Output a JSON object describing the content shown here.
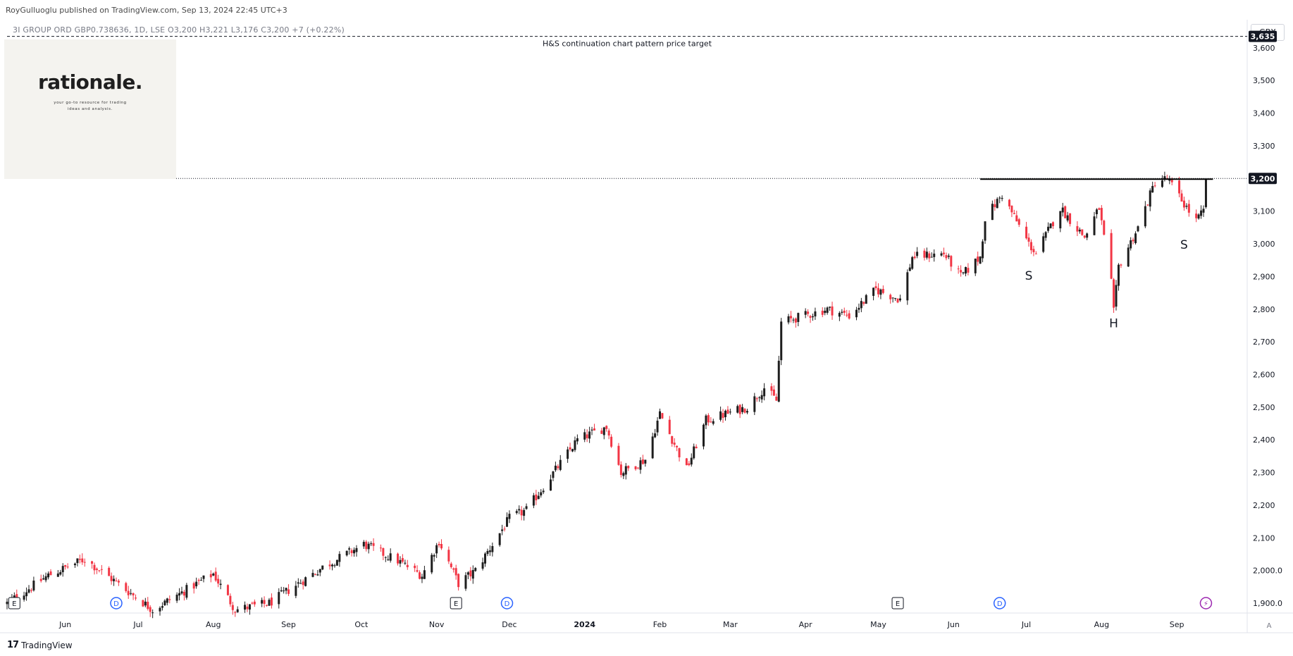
{
  "header": {
    "published": "RoyGulluoglu published on TradingView.com, Sep 13, 2024 22:45 UTC+3",
    "symbol_line": "3I GROUP ORD GBP0.738636, 1D, LSE  O3,200  H3,221  L3,176  C3,200  +7 (+0.22%)",
    "currency": "GBX"
  },
  "brand": {
    "name": "rationale.",
    "tagline": "your go-to resource for trading ideas and analysis."
  },
  "footer": {
    "logo": "17",
    "label": "TradingView",
    "auto_button": "A"
  },
  "colors": {
    "up": "#1e1e1e",
    "down": "#f23645",
    "target_badge": "#131722",
    "price_badge": "#131722"
  },
  "chart_data": {
    "type": "candlestick",
    "title": "",
    "xlabel": "",
    "ylabel": "",
    "ylim": [
      1870,
      3660
    ],
    "grid": false,
    "y_ticks": [
      "3,600",
      "3,500",
      "3,400",
      "3,300",
      "3,200",
      "3,100",
      "3,000",
      "2,900",
      "2,800",
      "2,700",
      "2,600",
      "2,500",
      "2,400",
      "2,300",
      "2,200",
      "2,100",
      "2,000.0",
      "1,900.0"
    ],
    "y_tick_values": [
      3600,
      3500,
      3400,
      3300,
      3200,
      3100,
      3000,
      2900,
      2800,
      2700,
      2600,
      2500,
      2400,
      2300,
      2200,
      2100,
      2000,
      1900
    ],
    "x_ticks": [
      "Jun",
      "Jul",
      "Aug",
      "Sep",
      "Oct",
      "Nov",
      "Dec",
      "2024",
      "Feb",
      "Mar",
      "Apr",
      "May",
      "Jun",
      "Jul",
      "Aug",
      "Sep"
    ],
    "x_tick_dates": [
      "2023-06-01",
      "2023-07-01",
      "2023-08-01",
      "2023-09-01",
      "2023-10-01",
      "2023-11-01",
      "2023-12-01",
      "2024-01-01",
      "2024-02-01",
      "2024-03-01",
      "2024-04-01",
      "2024-05-01",
      "2024-06-01",
      "2024-07-01",
      "2024-08-01",
      "2024-09-01"
    ],
    "x_range": [
      "2023-05-08",
      "2024-09-30"
    ],
    "price_target": {
      "value": 3635,
      "label": "3,635",
      "annotation": "H&S continuation chart pattern price target"
    },
    "current_price": {
      "value": 3200,
      "label": "3,200"
    },
    "neckline": {
      "value": 3198,
      "from": "2024-06-12",
      "to": "2024-09-13"
    },
    "pattern_labels": [
      {
        "text": "S",
        "date": "2024-07-02",
        "value": 2890
      },
      {
        "text": "H",
        "date": "2024-08-06",
        "value": 2745
      },
      {
        "text": "S",
        "date": "2024-09-04",
        "value": 2985
      }
    ],
    "event_markers": [
      {
        "text": "E",
        "date": "2023-05-11"
      },
      {
        "text": "D",
        "date": "2023-06-22"
      },
      {
        "text": "E",
        "date": "2023-11-09"
      },
      {
        "text": "D",
        "date": "2023-11-30"
      },
      {
        "text": "E",
        "date": "2024-05-09"
      },
      {
        "text": "D",
        "date": "2024-06-20"
      },
      {
        "text": "⚡",
        "date": "2024-09-13"
      }
    ],
    "price_path": [
      [
        "2023-05-08",
        1900
      ],
      [
        "2023-05-25",
        1985
      ],
      [
        "2023-06-09",
        2035
      ],
      [
        "2023-06-20",
        1975
      ],
      [
        "2023-07-07",
        1880
      ],
      [
        "2023-08-01",
        1990
      ],
      [
        "2023-08-10",
        1880
      ],
      [
        "2023-08-24",
        1900
      ],
      [
        "2023-09-15",
        2010
      ],
      [
        "2023-10-02",
        2080
      ],
      [
        "2023-10-16",
        2030
      ],
      [
        "2023-10-26",
        1985
      ],
      [
        "2023-11-02",
        2090
      ],
      [
        "2023-11-10",
        1960
      ],
      [
        "2023-11-17",
        2000
      ],
      [
        "2023-12-01",
        2160
      ],
      [
        "2023-12-08",
        2185
      ],
      [
        "2023-12-29",
        2400
      ],
      [
        "2024-01-10",
        2440
      ],
      [
        "2024-01-16",
        2300
      ],
      [
        "2024-01-26",
        2340
      ],
      [
        "2024-02-01",
        2480
      ],
      [
        "2024-02-12",
        2310
      ],
      [
        "2024-02-20",
        2460
      ],
      [
        "2024-03-08",
        2500
      ],
      [
        "2024-03-15",
        2560
      ],
      [
        "2024-03-20",
        2520
      ],
      [
        "2024-03-22",
        2760
      ],
      [
        "2024-04-10",
        2800
      ],
      [
        "2024-04-19",
        2780
      ],
      [
        "2024-04-30",
        2860
      ],
      [
        "2024-05-10",
        2830
      ],
      [
        "2024-05-15",
        2960
      ],
      [
        "2024-05-28",
        2970
      ],
      [
        "2024-06-04",
        2900
      ],
      [
        "2024-06-12",
        2960
      ],
      [
        "2024-06-14",
        3080
      ],
      [
        "2024-06-21",
        3150
      ],
      [
        "2024-07-02",
        3000
      ],
      [
        "2024-07-05",
        2970
      ],
      [
        "2024-07-15",
        3110
      ],
      [
        "2024-07-25",
        3020
      ],
      [
        "2024-07-31",
        3110
      ],
      [
        "2024-08-05",
        2880
      ],
      [
        "2024-08-06",
        2790
      ],
      [
        "2024-08-08",
        2930
      ],
      [
        "2024-08-16",
        3050
      ],
      [
        "2024-08-23",
        3190
      ],
      [
        "2024-08-28",
        3200
      ],
      [
        "2024-09-06",
        3100
      ],
      [
        "2024-09-09",
        3070
      ],
      [
        "2024-09-12",
        3100
      ],
      [
        "2024-09-13",
        3200
      ]
    ]
  }
}
